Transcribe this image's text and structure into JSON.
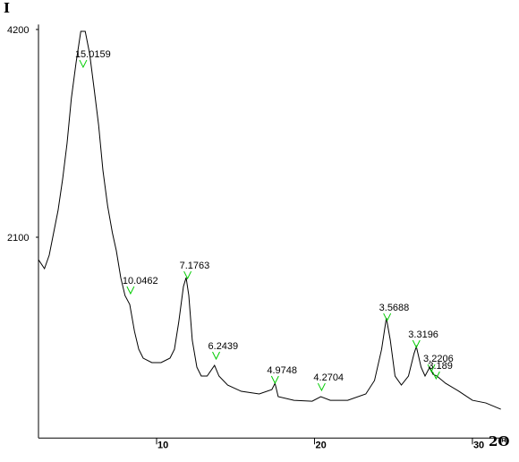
{
  "chart_data": {
    "type": "line",
    "y_label": "I",
    "x_label": "2Θ",
    "x": [
      2.52,
      2.9,
      3.2,
      3.48,
      3.76,
      4.05,
      4.33,
      4.6,
      4.9,
      5.2,
      5.48,
      5.76,
      6.05,
      6.33,
      6.6,
      6.9,
      7.2,
      7.45,
      7.73,
      8.0,
      8.3,
      8.6,
      8.87,
      9.15,
      9.7,
      10.28,
      10.85,
      11.13,
      11.4,
      11.7,
      11.87,
      12.04,
      12.26,
      12.55,
      12.83,
      13.2,
      13.67,
      13.95,
      14.5,
      15.36,
      16.5,
      17.3,
      17.5,
      17.7,
      18.7,
      19.85,
      20.4,
      21.0,
      22.1,
      23.25,
      23.8,
      24.25,
      24.55,
      24.8,
      25.1,
      25.5,
      25.95,
      26.3,
      26.45,
      26.75,
      27.0,
      27.3,
      27.5,
      27.75,
      28.3,
      29.15,
      30.0,
      30.85,
      31.8
    ],
    "series": [
      {
        "color": "#000000",
        "values": [
          1873,
          1783,
          1919,
          2145,
          2371,
          2688,
          3050,
          3502,
          3864,
          4181,
          4181,
          3955,
          3593,
          3231,
          2778,
          2416,
          2145,
          1964,
          1692,
          1511,
          1421,
          1149,
          968,
          878,
          833,
          833,
          878,
          968,
          1240,
          1602,
          1692,
          1511,
          1059,
          787,
          697,
          697,
          805,
          697,
          606,
          543,
          516,
          561,
          624,
          489,
          452,
          443,
          489,
          452,
          452,
          516,
          652,
          968,
          1285,
          1059,
          697,
          606,
          697,
          923,
          995,
          787,
          697,
          787,
          715,
          697,
          624,
          543,
          452,
          425,
          362
        ]
      }
    ],
    "peaks": [
      {
        "label": "15.0159",
        "x": 5.35,
        "y": 3846,
        "color": "#00cc00"
      },
      {
        "label": "10.0462",
        "x": 8.35,
        "y": 1557,
        "color": "#00cc00"
      },
      {
        "label": "7.1763",
        "x": 11.96,
        "y": 1710,
        "color": "#00cc00"
      },
      {
        "label": "6.2439",
        "x": 13.77,
        "y": 896,
        "color": "#00cc00"
      },
      {
        "label": "4.9748",
        "x": 17.5,
        "y": 652,
        "color": "#00cc00"
      },
      {
        "label": "4.2704",
        "x": 20.45,
        "y": 579,
        "color": "#00cc00"
      },
      {
        "label": "3.5688",
        "x": 24.6,
        "y": 1285,
        "color": "#00cc00"
      },
      {
        "label": "3.3196",
        "x": 26.45,
        "y": 1014,
        "color": "#00cc00"
      },
      {
        "label": "3.2206",
        "x": 27.4,
        "y": 769,
        "color": "#00cc00"
      },
      {
        "label": "3.189",
        "x": 27.7,
        "y": 697,
        "color": "#00cc00"
      }
    ],
    "xlim": [
      2.52,
      32.1
    ],
    "ylim": [
      70,
      4250
    ],
    "xticks": [
      10,
      20,
      30
    ],
    "yticks": [
      2100,
      4200
    ],
    "grid": false
  }
}
